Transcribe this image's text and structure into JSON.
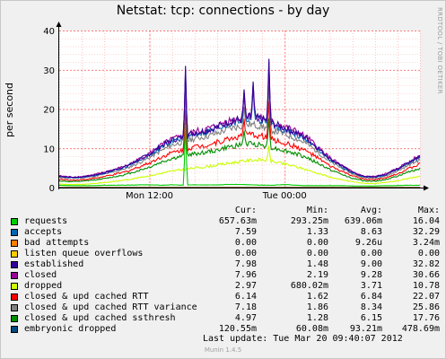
{
  "title": "Netstat: tcp: connections - by day",
  "side_credit": "RRDTOOL / TOBI OETIKER",
  "ylabel": "per second",
  "legend_header": {
    "cur": "Cur:",
    "min": "Min:",
    "avg": "Avg:",
    "max": "Max:"
  },
  "last_update": "Last update:  Tue Mar 20 09:40:07 2012",
  "footer": "Munin 1.4.5",
  "chart_data": {
    "type": "line",
    "title": "Netstat: tcp: connections - by day",
    "ylabel": "per second",
    "xlabel": "",
    "ylim": [
      0,
      40
    ],
    "y_ticks": [
      0,
      10,
      20,
      30,
      40
    ],
    "x_tick_labels": [
      "Mon 12:00",
      "Tue 00:00"
    ],
    "grid": true,
    "legend_position": "bottom",
    "x_hours": [
      0,
      1,
      2,
      3,
      4,
      5,
      6,
      7,
      8,
      9,
      10,
      11,
      12,
      13,
      14,
      15,
      16,
      17,
      18,
      19,
      20,
      21,
      22,
      23,
      24,
      25,
      26,
      27,
      28,
      29,
      30,
      31,
      32
    ],
    "series": [
      {
        "name": "requests",
        "color": "#00cc00",
        "cur": "657.63m",
        "min": "293.25m",
        "avg": "639.06m",
        "max": "16.04",
        "values": [
          0.6,
          0.5,
          0.5,
          0.5,
          0.6,
          0.6,
          0.6,
          0.7,
          0.7,
          0.6,
          0.7,
          0.6,
          0.7,
          0.7,
          0.7,
          0.8,
          0.8,
          0.7,
          0.6,
          0.6,
          0.8,
          0.6,
          0.5,
          0.5,
          0.5,
          0.5,
          0.4,
          0.4,
          0.4,
          0.5,
          0.5,
          0.6,
          0.6
        ],
        "spikes": [
          {
            "hour": 11.2,
            "value": 16.0
          }
        ]
      },
      {
        "name": "accepts",
        "color": "#0066b3",
        "cur": "7.59",
        "min": "1.33",
        "avg": "8.63",
        "max": "32.29",
        "values": [
          2.8,
          2.5,
          2.6,
          3.0,
          3.7,
          4.5,
          5.4,
          6.8,
          8.3,
          10.2,
          11.8,
          12.6,
          13.6,
          14.1,
          15.0,
          16.2,
          16.9,
          17.5,
          17.0,
          15.7,
          14.7,
          13.6,
          12.0,
          9.6,
          7.2,
          5.4,
          3.8,
          2.7,
          2.6,
          3.3,
          4.6,
          6.3,
          7.8
        ],
        "spikes": [
          {
            "hour": 11.2,
            "value": 30.0
          },
          {
            "hour": 16.4,
            "value": 24.0
          },
          {
            "hour": 17.2,
            "value": 26.0
          },
          {
            "hour": 18.6,
            "value": 32.0
          }
        ]
      },
      {
        "name": "bad attempts",
        "color": "#ff8000",
        "cur": "0.00",
        "min": "0.00",
        "avg": "9.26u",
        "max": "3.24m",
        "values": [
          0,
          0,
          0,
          0,
          0,
          0,
          0,
          0,
          0,
          0,
          0,
          0,
          0,
          0,
          0,
          0,
          0,
          0,
          0,
          0,
          0,
          0,
          0,
          0,
          0,
          0,
          0,
          0,
          0,
          0,
          0,
          0,
          0
        ]
      },
      {
        "name": "listen queue overflows",
        "color": "#ffcc00",
        "cur": "0.00",
        "min": "0.00",
        "avg": "0.00",
        "max": "0.00",
        "values": [
          0,
          0,
          0,
          0,
          0,
          0,
          0,
          0,
          0,
          0,
          0,
          0,
          0,
          0,
          0,
          0,
          0,
          0,
          0,
          0,
          0,
          0,
          0,
          0,
          0,
          0,
          0,
          0,
          0,
          0,
          0,
          0,
          0
        ]
      },
      {
        "name": "established",
        "color": "#330099",
        "cur": "7.98",
        "min": "1.48",
        "avg": "9.00",
        "max": "32.82",
        "values": [
          2.9,
          2.6,
          2.7,
          3.1,
          3.8,
          4.6,
          5.5,
          7.0,
          8.5,
          10.5,
          12.1,
          12.9,
          14.0,
          14.5,
          15.4,
          16.7,
          17.4,
          18.0,
          17.5,
          16.2,
          15.2,
          14.0,
          12.4,
          9.9,
          7.4,
          5.6,
          3.9,
          2.8,
          2.7,
          3.4,
          4.7,
          6.5,
          8.0
        ],
        "spikes": [
          {
            "hour": 11.2,
            "value": 31.0
          },
          {
            "hour": 16.4,
            "value": 25.0
          },
          {
            "hour": 17.2,
            "value": 27.0
          },
          {
            "hour": 18.6,
            "value": 32.8
          }
        ]
      },
      {
        "name": "closed",
        "color": "#990099",
        "cur": "7.96",
        "min": "2.19",
        "avg": "9.28",
        "max": "30.66",
        "values": [
          3.0,
          2.7,
          2.8,
          3.2,
          3.9,
          4.7,
          5.6,
          7.1,
          8.7,
          10.7,
          12.3,
          13.1,
          14.2,
          14.8,
          15.7,
          17.0,
          17.7,
          18.3,
          17.8,
          16.5,
          15.5,
          14.3,
          12.7,
          10.1,
          7.6,
          5.7,
          4.0,
          2.9,
          2.8,
          3.5,
          4.8,
          6.6,
          8.1
        ],
        "spikes": [
          {
            "hour": 11.2,
            "value": 29.0
          },
          {
            "hour": 16.4,
            "value": 24.5
          },
          {
            "hour": 17.2,
            "value": 26.5
          },
          {
            "hour": 18.6,
            "value": 30.6
          }
        ]
      },
      {
        "name": "dropped",
        "color": "#ccff00",
        "cur": "2.97",
        "min": "680.02m",
        "avg": "3.71",
        "max": "10.78",
        "values": [
          0.9,
          0.8,
          0.8,
          1.0,
          1.3,
          1.6,
          2.0,
          2.5,
          3.0,
          3.6,
          4.2,
          4.6,
          5.0,
          5.3,
          5.7,
          6.2,
          6.6,
          7.0,
          7.1,
          6.6,
          6.0,
          5.3,
          4.5,
          3.6,
          2.7,
          2.0,
          1.5,
          1.1,
          1.0,
          1.3,
          1.7,
          2.3,
          2.9
        ],
        "spikes": [
          {
            "hour": 18.6,
            "value": 10.7
          }
        ]
      },
      {
        "name": "closed & upd cached RTT",
        "color": "#ff0000",
        "cur": "6.14",
        "min": "1.62",
        "avg": "6.84",
        "max": "22.07",
        "values": [
          2.1,
          1.9,
          2.0,
          2.3,
          2.8,
          3.4,
          4.1,
          5.2,
          6.3,
          7.7,
          8.9,
          9.6,
          10.4,
          10.8,
          11.5,
          12.4,
          13.0,
          13.5,
          13.1,
          12.1,
          11.3,
          10.4,
          9.2,
          7.4,
          5.5,
          4.2,
          3.0,
          2.1,
          2.0,
          2.5,
          3.5,
          4.8,
          6.0
        ],
        "spikes": [
          {
            "hour": 11.2,
            "value": 20.0
          },
          {
            "hour": 16.4,
            "value": 17.5
          },
          {
            "hour": 18.6,
            "value": 22.0
          }
        ]
      },
      {
        "name": "closed & upd cached RTT variance",
        "color": "#808080",
        "cur": "7.18",
        "min": "1.86",
        "avg": "8.34",
        "max": "25.86",
        "values": [
          2.6,
          2.4,
          2.5,
          2.8,
          3.4,
          4.1,
          4.9,
          6.2,
          7.6,
          9.3,
          10.8,
          11.6,
          12.5,
          13.0,
          13.8,
          14.9,
          15.6,
          16.1,
          15.6,
          14.5,
          13.6,
          12.5,
          11.1,
          8.9,
          6.6,
          5.0,
          3.5,
          2.5,
          2.4,
          3.0,
          4.2,
          5.7,
          7.1
        ],
        "spikes": [
          {
            "hour": 11.2,
            "value": 24.0
          },
          {
            "hour": 16.4,
            "value": 20.5
          },
          {
            "hour": 18.6,
            "value": 25.8
          }
        ]
      },
      {
        "name": "closed & upd cached ssthresh",
        "color": "#008f00",
        "cur": "4.97",
        "min": "1.28",
        "avg": "6.15",
        "max": "17.76",
        "values": [
          1.7,
          1.5,
          1.6,
          1.9,
          2.3,
          2.8,
          3.4,
          4.3,
          5.2,
          6.4,
          7.4,
          8.0,
          8.6,
          9.0,
          9.5,
          10.3,
          10.8,
          11.2,
          10.9,
          10.1,
          9.4,
          8.6,
          7.6,
          6.1,
          4.6,
          3.4,
          2.4,
          1.7,
          1.6,
          2.1,
          2.9,
          4.0,
          4.9
        ],
        "spikes": [
          {
            "hour": 11.2,
            "value": 16.5
          },
          {
            "hour": 16.4,
            "value": 14.5
          },
          {
            "hour": 18.6,
            "value": 17.7
          }
        ]
      },
      {
        "name": "embryonic dropped",
        "color": "#00487d",
        "cur": "120.55m",
        "min": "60.08m",
        "avg": "93.21m",
        "max": "478.69m",
        "values": [
          0.1,
          0.1,
          0.1,
          0.1,
          0.1,
          0.1,
          0.1,
          0.1,
          0.1,
          0.1,
          0.1,
          0.1,
          0.1,
          0.1,
          0.1,
          0.1,
          0.1,
          0.1,
          0.1,
          0.1,
          0.1,
          0.1,
          0.1,
          0.1,
          0.1,
          0.1,
          0.1,
          0.1,
          0.1,
          0.1,
          0.1,
          0.1,
          0.12
        ]
      }
    ]
  }
}
